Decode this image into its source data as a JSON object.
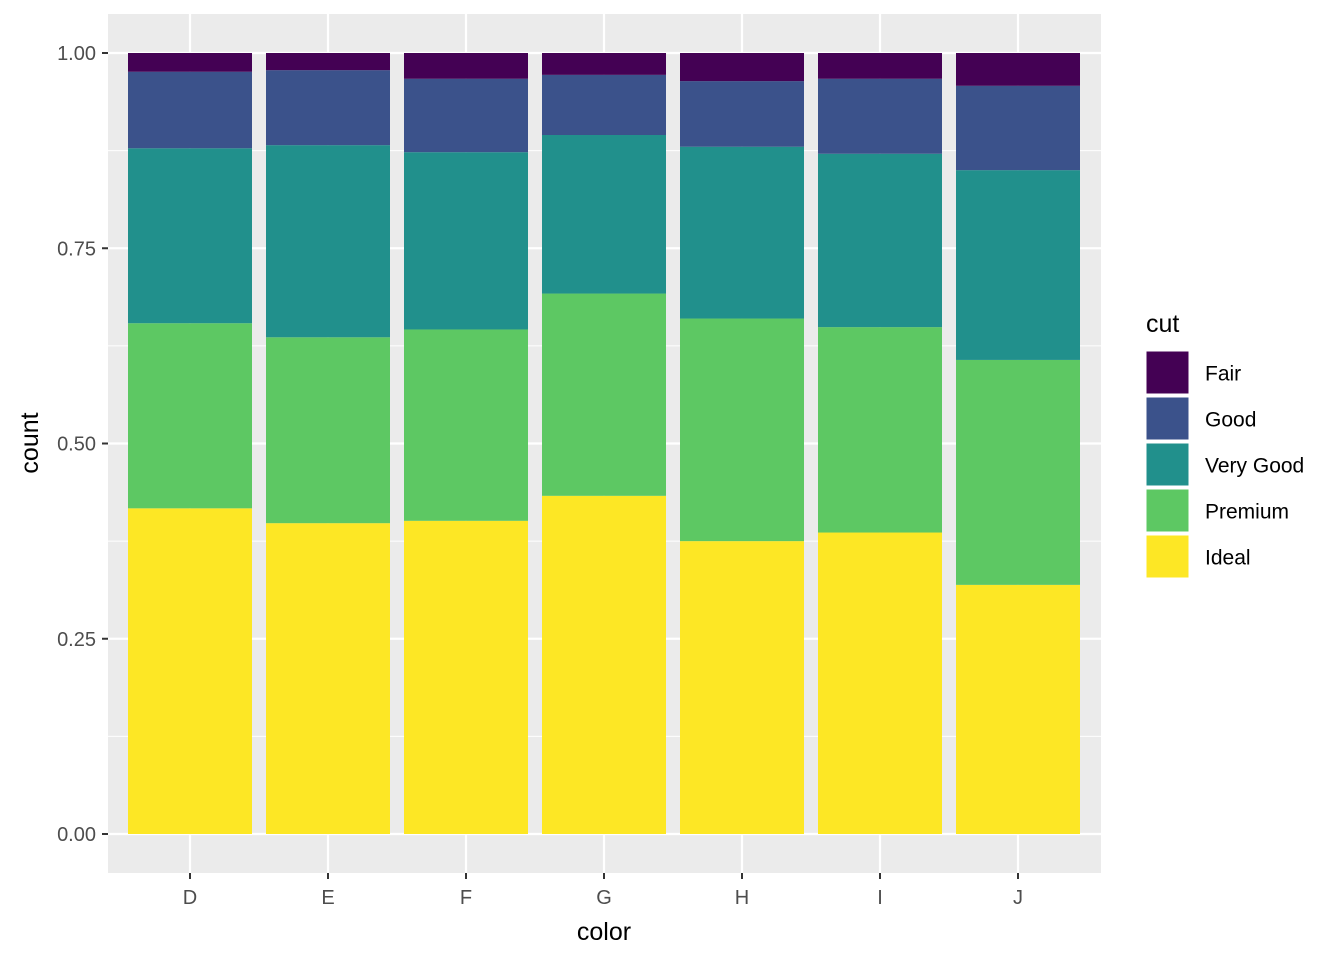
{
  "chart_data": {
    "type": "bar",
    "stacked": true,
    "position": "fill",
    "xlabel": "color",
    "ylabel": "count",
    "ylim": [
      0,
      1
    ],
    "yticks": [
      "0.00",
      "0.25",
      "0.50",
      "0.75",
      "1.00"
    ],
    "categories": [
      "D",
      "E",
      "F",
      "G",
      "H",
      "I",
      "J"
    ],
    "grid": true,
    "legend": {
      "title": "cut",
      "placement": "right"
    },
    "series": [
      {
        "name": "Fair",
        "color": "#440154",
        "values": [
          0.024,
          0.022,
          0.033,
          0.028,
          0.036,
          0.033,
          0.042
        ]
      },
      {
        "name": "Good",
        "color": "#3B528B",
        "values": [
          0.098,
          0.096,
          0.094,
          0.077,
          0.084,
          0.096,
          0.108
        ]
      },
      {
        "name": "Very Good",
        "color": "#21908C",
        "values": [
          0.224,
          0.246,
          0.227,
          0.203,
          0.22,
          0.222,
          0.243
        ]
      },
      {
        "name": "Premium",
        "color": "#5DC863",
        "values": [
          0.237,
          0.238,
          0.245,
          0.259,
          0.285,
          0.263,
          0.288
        ]
      },
      {
        "name": "Ideal",
        "color": "#FDE725",
        "values": [
          0.417,
          0.398,
          0.401,
          0.433,
          0.375,
          0.386,
          0.319
        ]
      }
    ]
  }
}
